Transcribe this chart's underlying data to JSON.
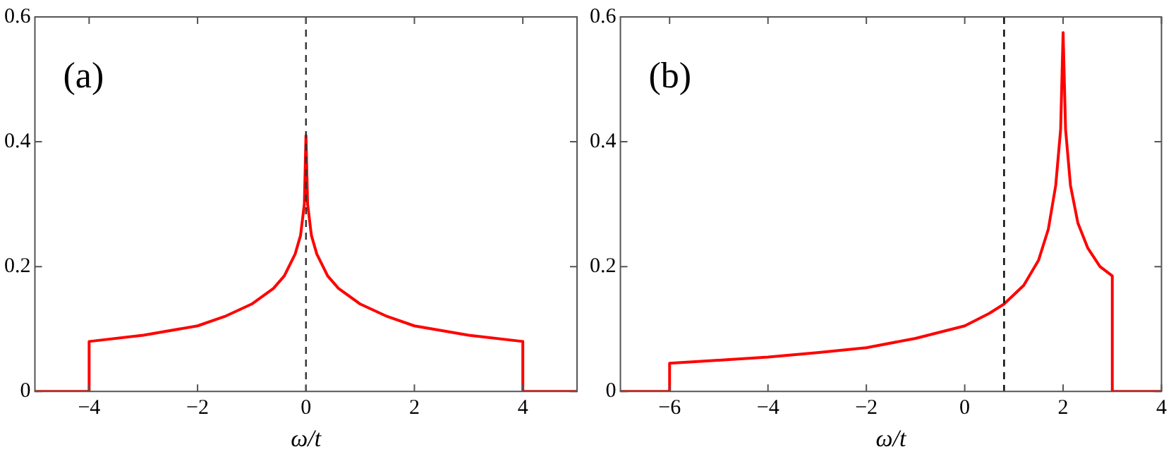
{
  "chart_data": [
    {
      "type": "line",
      "xlabel": "ω/t",
      "annotations": [
        "(a)"
      ],
      "xlim": [
        -5,
        5
      ],
      "xticks": [
        -4,
        -2,
        0,
        2,
        4
      ],
      "ylim": [
        0,
        0.6
      ],
      "yticks": [
        0,
        0.2,
        0.4,
        0.6
      ],
      "grid": false,
      "legend": false,
      "marker": "none",
      "line_style": "solid",
      "ref_lines": [
        {
          "axis": "x",
          "value": 0,
          "color": "#333333",
          "line_style": "dashed"
        }
      ],
      "series": [
        {
          "color": "#ff0000",
          "x": [
            -5,
            -4,
            -4,
            -3,
            -2,
            -1.5,
            -1,
            -0.6,
            -0.4,
            -0.2,
            -0.1,
            -0.03,
            0,
            0.03,
            0.1,
            0.2,
            0.4,
            0.6,
            1,
            1.5,
            2,
            3,
            4,
            4,
            5
          ],
          "values": [
            0,
            0,
            0.08,
            0.09,
            0.105,
            0.12,
            0.14,
            0.165,
            0.185,
            0.22,
            0.25,
            0.3,
            0.41,
            0.3,
            0.25,
            0.22,
            0.185,
            0.165,
            0.14,
            0.12,
            0.105,
            0.09,
            0.08,
            0,
            0
          ]
        }
      ]
    },
    {
      "type": "line",
      "xlabel": "ω/t",
      "annotations": [
        "(b)"
      ],
      "xlim": [
        -7,
        4
      ],
      "xticks": [
        -6,
        -4,
        -2,
        0,
        2,
        4
      ],
      "ylim": [
        0,
        0.6
      ],
      "yticks": [
        0,
        0.2,
        0.4,
        0.6
      ],
      "grid": false,
      "legend": false,
      "marker": "none",
      "line_style": "solid",
      "ref_lines": [
        {
          "axis": "x",
          "value": 0.8,
          "color": "#000000",
          "line_style": "dashed"
        }
      ],
      "series": [
        {
          "color": "#ff0000",
          "x": [
            -7,
            -6,
            -6,
            -5,
            -4,
            -3,
            -2,
            -1,
            0,
            0.5,
            0.8,
            1.2,
            1.5,
            1.7,
            1.85,
            1.95,
            2,
            2.05,
            2.15,
            2.3,
            2.5,
            2.75,
            3,
            3,
            4
          ],
          "values": [
            0,
            0,
            0.045,
            0.05,
            0.055,
            0.062,
            0.07,
            0.085,
            0.105,
            0.125,
            0.14,
            0.17,
            0.21,
            0.26,
            0.33,
            0.42,
            0.575,
            0.42,
            0.33,
            0.27,
            0.23,
            0.2,
            0.185,
            0,
            0
          ]
        }
      ]
    }
  ]
}
